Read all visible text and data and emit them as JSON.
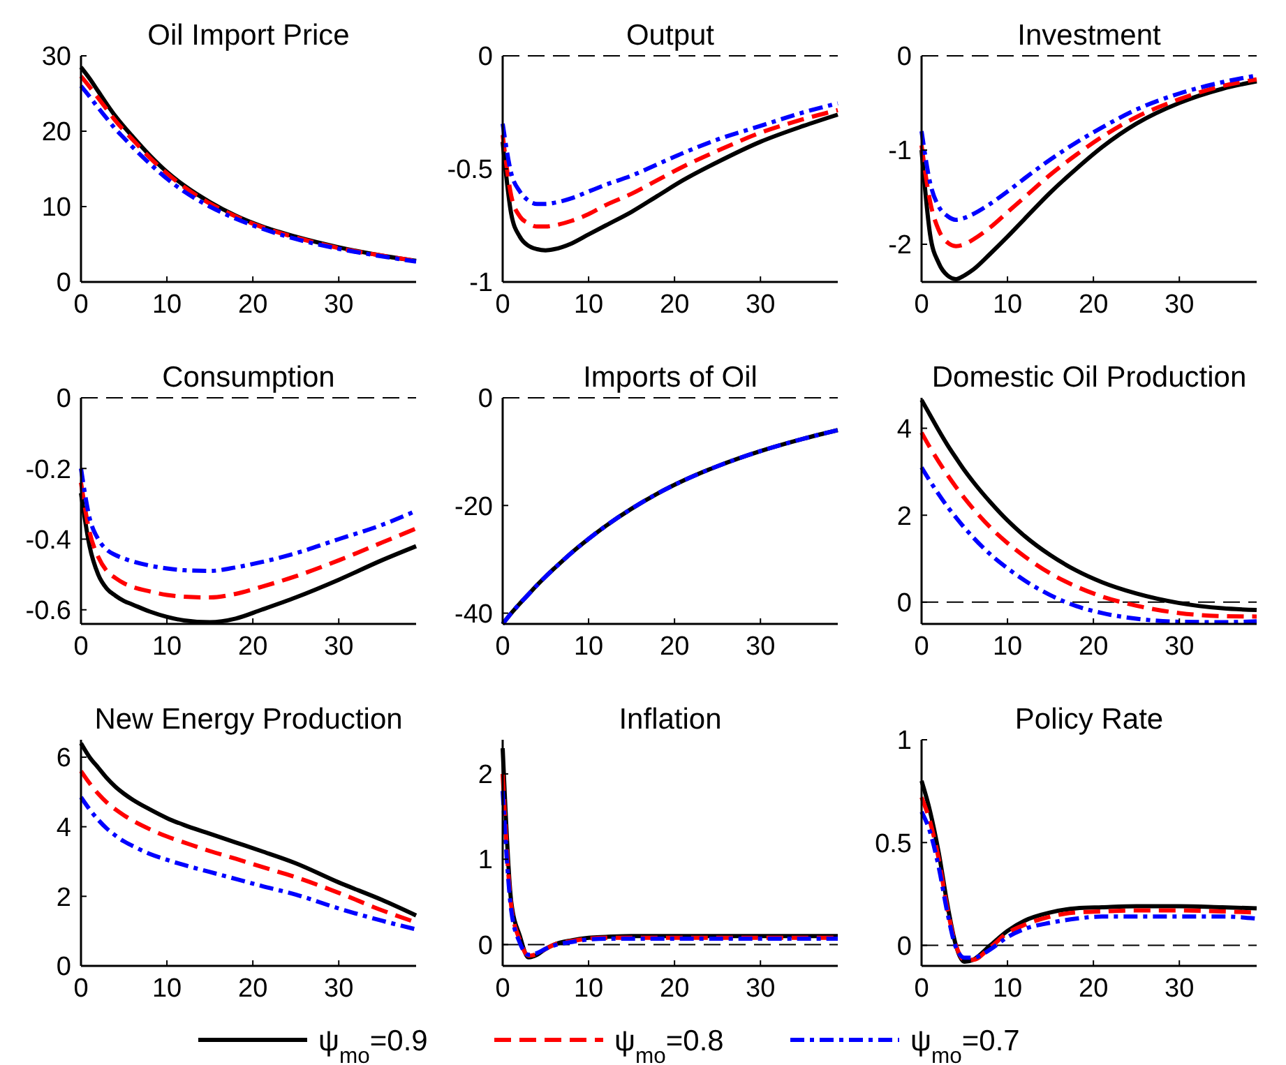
{
  "chart_data": [
    {
      "type": "line",
      "title": "Oil Import Price",
      "x": [
        0,
        1,
        2,
        3,
        4,
        5,
        6,
        8,
        10,
        12,
        15,
        18,
        21,
        25,
        30,
        35,
        39
      ],
      "xlim": [
        0,
        39
      ],
      "xticks": [
        0,
        10,
        20,
        30
      ],
      "ylim": [
        0,
        30
      ],
      "yticks": [
        0,
        10,
        20,
        30
      ],
      "series": [
        {
          "color": "#000000",
          "line_style": "solid",
          "values": [
            28.5,
            27,
            25.3,
            23.6,
            22,
            20.6,
            19.3,
            16.8,
            14.6,
            12.8,
            10.6,
            8.8,
            7.4,
            6,
            4.6,
            3.5,
            2.8
          ]
        },
        {
          "color": "#ff0000",
          "line_style": "dashed",
          "values": [
            27.3,
            25.9,
            24.4,
            22.9,
            21.4,
            20.1,
            18.9,
            16.5,
            14.4,
            12.6,
            10.4,
            8.7,
            7.3,
            5.9,
            4.5,
            3.5,
            2.8
          ]
        },
        {
          "color": "#0000ff",
          "line_style": "dashdot",
          "values": [
            26,
            24.6,
            23.1,
            21.7,
            20.3,
            19.1,
            17.9,
            15.7,
            13.7,
            12,
            10,
            8.4,
            7.1,
            5.7,
            4.4,
            3.4,
            2.7
          ]
        }
      ]
    },
    {
      "type": "line",
      "title": "Output",
      "x": [
        0,
        1,
        2,
        3,
        4,
        5,
        6,
        8,
        10,
        12,
        15,
        18,
        21,
        25,
        30,
        35,
        39
      ],
      "xlim": [
        0,
        39
      ],
      "xticks": [
        0,
        10,
        20,
        30
      ],
      "ylim": [
        -1,
        0
      ],
      "yticks": [
        -1,
        -0.5,
        0
      ],
      "ref_lines": [
        {
          "axis": "y",
          "value": 0,
          "color": "#000000",
          "line_style": "dashed"
        }
      ],
      "series": [
        {
          "color": "#000000",
          "line_style": "solid",
          "values": [
            -0.38,
            -0.7,
            -0.8,
            -0.84,
            -0.855,
            -0.86,
            -0.855,
            -0.83,
            -0.79,
            -0.75,
            -0.69,
            -0.62,
            -0.55,
            -0.47,
            -0.38,
            -0.31,
            -0.26
          ]
        },
        {
          "color": "#ff0000",
          "line_style": "dashed",
          "values": [
            -0.35,
            -0.62,
            -0.71,
            -0.74,
            -0.755,
            -0.755,
            -0.75,
            -0.73,
            -0.7,
            -0.66,
            -0.61,
            -0.55,
            -0.49,
            -0.42,
            -0.34,
            -0.28,
            -0.24
          ]
        },
        {
          "color": "#0000ff",
          "line_style": "dashdot",
          "values": [
            -0.3,
            -0.52,
            -0.6,
            -0.64,
            -0.655,
            -0.655,
            -0.65,
            -0.63,
            -0.6,
            -0.57,
            -0.53,
            -0.48,
            -0.43,
            -0.37,
            -0.31,
            -0.25,
            -0.21
          ]
        }
      ]
    },
    {
      "type": "line",
      "title": "Investment",
      "x": [
        0,
        1,
        2,
        3,
        4,
        5,
        6,
        8,
        10,
        12,
        15,
        18,
        21,
        25,
        30,
        35,
        39
      ],
      "xlim": [
        0,
        39
      ],
      "xticks": [
        0,
        10,
        20,
        30
      ],
      "ylim": [
        -2.4,
        0
      ],
      "yticks": [
        -2,
        -1,
        0
      ],
      "ref_lines": [
        {
          "axis": "y",
          "value": 0,
          "color": "#000000",
          "line_style": "dashed"
        }
      ],
      "series": [
        {
          "color": "#000000",
          "line_style": "solid",
          "values": [
            -1.0,
            -1.9,
            -2.2,
            -2.33,
            -2.37,
            -2.33,
            -2.27,
            -2.1,
            -1.92,
            -1.73,
            -1.45,
            -1.2,
            -0.97,
            -0.72,
            -0.5,
            -0.35,
            -0.27
          ]
        },
        {
          "color": "#ff0000",
          "line_style": "dashed",
          "values": [
            -0.95,
            -1.55,
            -1.85,
            -1.98,
            -2.02,
            -2.0,
            -1.95,
            -1.82,
            -1.66,
            -1.5,
            -1.26,
            -1.05,
            -0.86,
            -0.65,
            -0.46,
            -0.32,
            -0.25
          ]
        },
        {
          "color": "#0000ff",
          "line_style": "dashdot",
          "values": [
            -0.8,
            -1.35,
            -1.6,
            -1.7,
            -1.74,
            -1.72,
            -1.68,
            -1.57,
            -1.44,
            -1.3,
            -1.1,
            -0.92,
            -0.76,
            -0.57,
            -0.4,
            -0.28,
            -0.21
          ]
        }
      ]
    },
    {
      "type": "line",
      "title": "Consumption",
      "x": [
        0,
        1,
        2,
        3,
        4,
        5,
        6,
        8,
        10,
        12,
        15,
        18,
        21,
        25,
        30,
        35,
        39
      ],
      "xlim": [
        0,
        39
      ],
      "xticks": [
        0,
        10,
        20,
        30
      ],
      "ylim": [
        -0.64,
        0
      ],
      "yticks": [
        -0.6,
        -0.4,
        -0.2,
        0
      ],
      "ref_lines": [
        {
          "axis": "y",
          "value": 0,
          "color": "#000000",
          "line_style": "dashed"
        }
      ],
      "series": [
        {
          "color": "#000000",
          "line_style": "solid",
          "values": [
            -0.27,
            -0.42,
            -0.5,
            -0.54,
            -0.56,
            -0.575,
            -0.585,
            -0.605,
            -0.62,
            -0.63,
            -0.635,
            -0.625,
            -0.6,
            -0.565,
            -0.515,
            -0.46,
            -0.42
          ]
        },
        {
          "color": "#ff0000",
          "line_style": "dashed",
          "values": [
            -0.24,
            -0.38,
            -0.45,
            -0.49,
            -0.51,
            -0.525,
            -0.535,
            -0.548,
            -0.558,
            -0.563,
            -0.565,
            -0.555,
            -0.535,
            -0.505,
            -0.46,
            -0.41,
            -0.37
          ]
        },
        {
          "color": "#0000ff",
          "line_style": "dashdot",
          "values": [
            -0.2,
            -0.34,
            -0.4,
            -0.43,
            -0.445,
            -0.455,
            -0.463,
            -0.475,
            -0.483,
            -0.488,
            -0.49,
            -0.48,
            -0.465,
            -0.44,
            -0.4,
            -0.36,
            -0.32
          ]
        }
      ]
    },
    {
      "type": "line",
      "title": "Imports of Oil",
      "x": [
        0,
        1,
        2,
        3,
        4,
        5,
        6,
        8,
        10,
        12,
        15,
        18,
        21,
        25,
        30,
        35,
        39
      ],
      "xlim": [
        0,
        39
      ],
      "xticks": [
        0,
        10,
        20,
        30
      ],
      "ylim": [
        -42,
        0
      ],
      "yticks": [
        -40,
        -20,
        0
      ],
      "ref_lines": [
        {
          "axis": "y",
          "value": 0,
          "color": "#000000",
          "line_style": "dashed"
        }
      ],
      "series": [
        {
          "color": "#000000",
          "line_style": "solid",
          "values": [
            -42,
            -40,
            -38.2,
            -36.5,
            -34.8,
            -33.2,
            -31.7,
            -28.8,
            -26.2,
            -23.8,
            -20.6,
            -17.8,
            -15.4,
            -12.7,
            -9.9,
            -7.6,
            -6
          ]
        },
        {
          "color": "#ff0000",
          "line_style": "dashed",
          "values": [
            null,
            null,
            null,
            null,
            null,
            null,
            null,
            null,
            null,
            null,
            null,
            null,
            null,
            null,
            null,
            null,
            null
          ]
        },
        {
          "color": "#0000ff",
          "line_style": "dashdot",
          "values": [
            -42,
            -40,
            -38.2,
            -36.5,
            -34.8,
            -33.2,
            -31.7,
            -28.8,
            -26.2,
            -23.8,
            -20.6,
            -17.8,
            -15.4,
            -12.7,
            -9.9,
            -7.6,
            -6
          ]
        }
      ]
    },
    {
      "type": "line",
      "title": "Domestic Oil Production",
      "x": [
        0,
        1,
        2,
        3,
        4,
        5,
        6,
        8,
        10,
        12,
        15,
        18,
        21,
        25,
        30,
        35,
        39
      ],
      "xlim": [
        0,
        39
      ],
      "xticks": [
        0,
        10,
        20,
        30
      ],
      "ylim": [
        -0.5,
        4.7
      ],
      "yticks": [
        0,
        2,
        4
      ],
      "ref_lines": [
        {
          "axis": "y",
          "value": 0,
          "color": "#000000",
          "line_style": "dashed"
        }
      ],
      "series": [
        {
          "color": "#000000",
          "line_style": "solid",
          "values": [
            4.65,
            4.3,
            3.95,
            3.62,
            3.32,
            3.03,
            2.77,
            2.3,
            1.88,
            1.52,
            1.08,
            0.73,
            0.46,
            0.2,
            -0.02,
            -0.14,
            -0.18
          ]
        },
        {
          "color": "#ff0000",
          "line_style": "dashed",
          "values": [
            3.9,
            3.55,
            3.23,
            2.93,
            2.65,
            2.39,
            2.15,
            1.72,
            1.36,
            1.05,
            0.66,
            0.36,
            0.13,
            -0.08,
            -0.25,
            -0.32,
            -0.33
          ]
        },
        {
          "color": "#0000ff",
          "line_style": "dashdot",
          "values": [
            3.1,
            2.78,
            2.48,
            2.2,
            1.95,
            1.71,
            1.49,
            1.1,
            0.78,
            0.5,
            0.16,
            -0.09,
            -0.25,
            -0.38,
            -0.45,
            -0.46,
            -0.44
          ]
        }
      ]
    },
    {
      "type": "line",
      "title": "New Energy Production",
      "x": [
        0,
        1,
        2,
        3,
        4,
        5,
        6,
        8,
        10,
        12,
        15,
        18,
        21,
        25,
        30,
        35,
        39
      ],
      "xlim": [
        0,
        39
      ],
      "xticks": [
        0,
        10,
        20,
        30
      ],
      "ylim": [
        0,
        6.5
      ],
      "yticks": [
        0,
        2,
        4,
        6
      ],
      "series": [
        {
          "color": "#000000",
          "line_style": "solid",
          "values": [
            6.4,
            6.0,
            5.7,
            5.4,
            5.15,
            4.95,
            4.78,
            4.5,
            4.25,
            4.05,
            3.8,
            3.55,
            3.3,
            2.95,
            2.4,
            1.9,
            1.45
          ]
        },
        {
          "color": "#ff0000",
          "line_style": "dashed",
          "values": [
            5.6,
            5.25,
            4.95,
            4.7,
            4.5,
            4.33,
            4.18,
            3.93,
            3.72,
            3.55,
            3.3,
            3.08,
            2.85,
            2.55,
            2.1,
            1.6,
            1.25
          ]
        },
        {
          "color": "#0000ff",
          "line_style": "dashdot",
          "values": [
            4.85,
            4.5,
            4.2,
            3.95,
            3.75,
            3.58,
            3.45,
            3.22,
            3.05,
            2.9,
            2.7,
            2.5,
            2.3,
            2.05,
            1.65,
            1.3,
            1.05
          ]
        }
      ]
    },
    {
      "type": "line",
      "title": "Inflation",
      "x": [
        0,
        1,
        2,
        3,
        4,
        5,
        6,
        8,
        10,
        12,
        15,
        18,
        21,
        25,
        30,
        35,
        39
      ],
      "xlim": [
        0,
        39
      ],
      "xticks": [
        0,
        10,
        20,
        30
      ],
      "ylim": [
        -0.25,
        2.4
      ],
      "yticks": [
        0,
        1,
        2
      ],
      "ref_lines": [
        {
          "axis": "y",
          "value": 0,
          "color": "#000000",
          "line_style": "dashed"
        }
      ],
      "series": [
        {
          "color": "#000000",
          "line_style": "solid",
          "values": [
            2.3,
            0.5,
            0.1,
            -0.15,
            -0.12,
            -0.05,
            0,
            0.05,
            0.08,
            0.09,
            0.1,
            0.1,
            0.1,
            0.1,
            0.1,
            0.1,
            0.1
          ]
        },
        {
          "color": "#ff0000",
          "line_style": "dashed",
          "values": [
            2.0,
            0.45,
            0.05,
            -0.13,
            -0.11,
            -0.05,
            0,
            0.04,
            0.07,
            0.08,
            0.08,
            0.08,
            0.08,
            0.08,
            0.08,
            0.08,
            0.08
          ]
        },
        {
          "color": "#0000ff",
          "line_style": "dashdot",
          "values": [
            1.8,
            0.4,
            0.02,
            -0.12,
            -0.1,
            -0.05,
            -0.01,
            0.03,
            0.06,
            0.07,
            0.07,
            0.07,
            0.07,
            0.07,
            0.07,
            0.07,
            0.07
          ]
        }
      ]
    },
    {
      "type": "line",
      "title": "Policy Rate",
      "x": [
        0,
        1,
        2,
        3,
        4,
        5,
        6,
        8,
        10,
        12,
        15,
        18,
        21,
        25,
        30,
        35,
        39
      ],
      "xlim": [
        0,
        39
      ],
      "xticks": [
        0,
        10,
        20,
        30
      ],
      "ylim": [
        -0.1,
        1
      ],
      "yticks": [
        0,
        0.5,
        1
      ],
      "legend": "bottom",
      "ref_lines": [
        {
          "axis": "y",
          "value": 0,
          "color": "#000000",
          "line_style": "dashed"
        }
      ],
      "series": [
        {
          "name": "ψ$_{mo}$=0.9",
          "color": "#000000",
          "line_style": "solid",
          "values": [
            0.8,
            0.65,
            0.45,
            0.2,
            0,
            -0.08,
            -0.07,
            0,
            0.07,
            0.12,
            0.16,
            0.18,
            0.185,
            0.19,
            0.19,
            0.185,
            0.18
          ]
        },
        {
          "name": "ψ$_{mo}$=0.8",
          "color": "#ff0000",
          "line_style": "dashed",
          "values": [
            0.72,
            0.6,
            0.42,
            0.18,
            0,
            -0.07,
            -0.07,
            -0.01,
            0.06,
            0.1,
            0.14,
            0.16,
            0.165,
            0.17,
            0.17,
            0.165,
            0.16
          ]
        },
        {
          "name": "ψ$_{mo}$=0.7",
          "color": "#0000ff",
          "line_style": "dashdot",
          "values": [
            0.65,
            0.55,
            0.38,
            0.16,
            -0.01,
            -0.06,
            -0.06,
            -0.02,
            0.04,
            0.08,
            0.11,
            0.13,
            0.14,
            0.14,
            0.14,
            0.14,
            0.13
          ]
        }
      ]
    }
  ]
}
